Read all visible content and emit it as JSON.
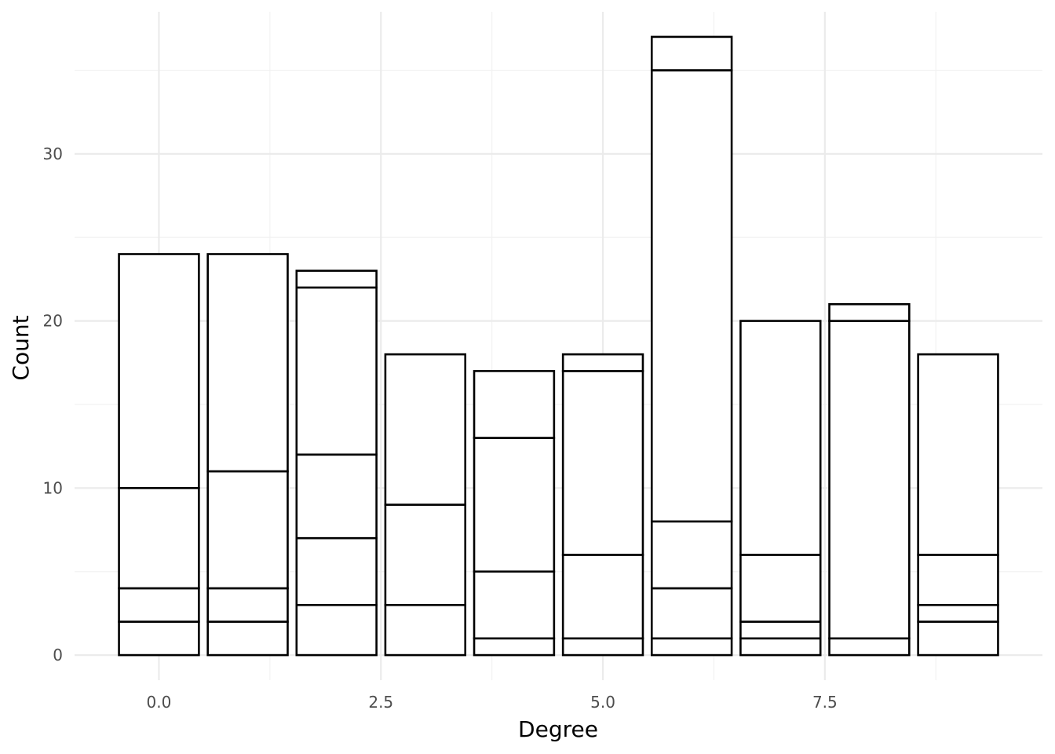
{
  "chart_data": {
    "type": "bar",
    "stacked": true,
    "title": "",
    "xlabel": "Degree",
    "ylabel": "Count",
    "xlim": [
      -0.95,
      9.95
    ],
    "ylim": [
      -1.5,
      38.5
    ],
    "x_ticks": [
      0.0,
      2.5,
      5.0,
      7.5
    ],
    "x_tick_labels": [
      "0.0",
      "2.5",
      "5.0",
      "7.5"
    ],
    "x_minor_ticks": [
      1.25,
      3.75,
      6.25,
      8.75
    ],
    "y_ticks": [
      0,
      10,
      20,
      30
    ],
    "y_tick_labels": [
      "0",
      "10",
      "20",
      "30"
    ],
    "y_minor_ticks": [
      5,
      15,
      25,
      35
    ],
    "bar_width": 0.9,
    "grid": true,
    "fill_color": "#ffffff",
    "outline_color": "#000000",
    "bars": [
      {
        "x": 0,
        "segments": [
          2,
          2,
          6,
          14
        ],
        "total": 24
      },
      {
        "x": 1,
        "segments": [
          2,
          2,
          7,
          13
        ],
        "total": 24
      },
      {
        "x": 2,
        "segments": [
          3,
          4,
          5,
          10,
          1
        ],
        "total": 23
      },
      {
        "x": 3,
        "segments": [
          3,
          6,
          9
        ],
        "total": 18
      },
      {
        "x": 4,
        "segments": [
          1,
          4,
          8,
          4
        ],
        "total": 17
      },
      {
        "x": 5,
        "segments": [
          1,
          5,
          11,
          1
        ],
        "total": 18
      },
      {
        "x": 6,
        "segments": [
          1,
          3,
          4,
          27,
          2
        ],
        "total": 37
      },
      {
        "x": 7,
        "segments": [
          1,
          1,
          4,
          14
        ],
        "total": 20
      },
      {
        "x": 8,
        "segments": [
          1,
          19,
          1
        ],
        "total": 21
      },
      {
        "x": 9,
        "segments": [
          2,
          1,
          3,
          12
        ],
        "total": 18
      }
    ]
  }
}
